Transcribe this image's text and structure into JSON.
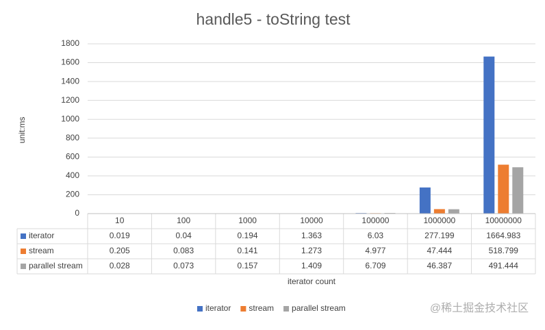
{
  "chart_data": {
    "type": "bar",
    "title": "handle5 - toString test",
    "y_axis_label": "unit:ms",
    "x_axis_label": "iterator count",
    "categories": [
      "10",
      "100",
      "1000",
      "10000",
      "100000",
      "1000000",
      "10000000"
    ],
    "series": [
      {
        "name": "iterator",
        "color": "#4472c4",
        "values": [
          0.019,
          0.04,
          0.194,
          1.363,
          6.03,
          277.199,
          1664.983
        ]
      },
      {
        "name": "stream",
        "color": "#ed7d31",
        "values": [
          0.205,
          0.083,
          0.141,
          1.273,
          4.977,
          47.444,
          518.799
        ]
      },
      {
        "name": "parallel stream",
        "color": "#a5a5a5",
        "values": [
          0.028,
          0.073,
          0.157,
          1.409,
          6.709,
          46.387,
          491.444
        ]
      }
    ],
    "ylim": [
      0,
      1800
    ],
    "yticks": [
      0,
      200,
      400,
      600,
      800,
      1000,
      1200,
      1400,
      1600,
      1800
    ],
    "grid": true,
    "data_table": true,
    "legend": "bottom"
  },
  "watermark": "@稀土掘金技术社区"
}
